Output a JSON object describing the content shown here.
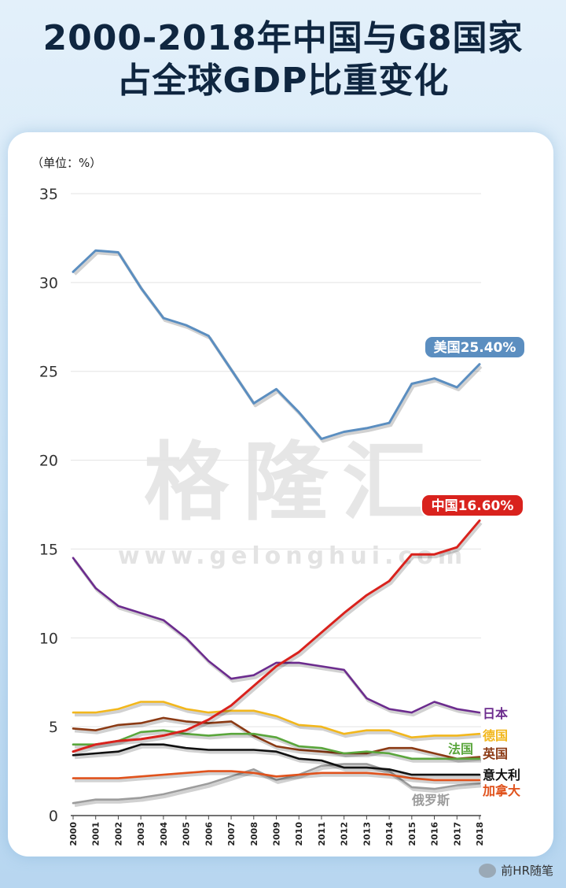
{
  "title_line1": "2000-2018年中国与G8国家",
  "title_line2": "占全球GDP比重变化",
  "unit": "（单位：%）",
  "watermark": "格隆汇",
  "watermark_url": "www.gelonghui.com",
  "credit": "前HR随笔",
  "callouts": {
    "us": "美国25.40%",
    "china": "中国16.60%"
  },
  "colors": {
    "us": "#5b8ec0",
    "china": "#d9221d",
    "japan": "#6c2c8e",
    "germany": "#f2b71c",
    "france": "#5aa63c",
    "uk": "#8b3a14",
    "italy": "#111111",
    "canada": "#e0521c",
    "russia": "#9c9c9c"
  },
  "chart_data": {
    "type": "line",
    "title": "2000-2018年中国与G8国家占全球GDP比重变化",
    "ylabel": "（单位：%）",
    "ylim": [
      0,
      35
    ],
    "yticks": [
      0,
      5,
      10,
      15,
      20,
      25,
      30,
      35
    ],
    "x": [
      "2000",
      "2001",
      "2002",
      "2003",
      "2004",
      "2005",
      "2006",
      "2007",
      "2008",
      "2009",
      "2010",
      "2011",
      "2012",
      "2013",
      "2014",
      "2015",
      "2016",
      "2017",
      "2018"
    ],
    "series": [
      {
        "name": "美国",
        "key": "us",
        "values": [
          30.6,
          31.8,
          31.7,
          29.7,
          28.0,
          27.6,
          27.0,
          25.1,
          23.2,
          24.0,
          22.7,
          21.2,
          21.6,
          21.8,
          22.1,
          24.3,
          24.6,
          24.1,
          25.4
        ]
      },
      {
        "name": "中国",
        "key": "china",
        "values": [
          3.6,
          4.0,
          4.2,
          4.3,
          4.5,
          4.8,
          5.4,
          6.2,
          7.3,
          8.4,
          9.2,
          10.3,
          11.4,
          12.4,
          13.2,
          14.7,
          14.7,
          15.1,
          16.6
        ]
      },
      {
        "name": "日本",
        "key": "japan",
        "values": [
          14.5,
          12.8,
          11.8,
          11.4,
          11.0,
          10.0,
          8.7,
          7.7,
          7.9,
          8.6,
          8.6,
          8.4,
          8.2,
          6.6,
          6.0,
          5.8,
          6.4,
          6.0,
          5.8
        ]
      },
      {
        "name": "德国",
        "key": "germany",
        "values": [
          5.8,
          5.8,
          6.0,
          6.4,
          6.4,
          6.0,
          5.8,
          5.9,
          5.9,
          5.6,
          5.1,
          5.0,
          4.6,
          4.8,
          4.8,
          4.4,
          4.5,
          4.5,
          4.6
        ]
      },
      {
        "name": "法国",
        "key": "france",
        "values": [
          4.0,
          4.0,
          4.2,
          4.7,
          4.8,
          4.6,
          4.5,
          4.6,
          4.6,
          4.4,
          3.9,
          3.8,
          3.5,
          3.6,
          3.5,
          3.2,
          3.2,
          3.2,
          3.2
        ]
      },
      {
        "name": "英国",
        "key": "uk",
        "values": [
          4.9,
          4.8,
          5.1,
          5.2,
          5.5,
          5.3,
          5.2,
          5.3,
          4.5,
          3.9,
          3.7,
          3.6,
          3.5,
          3.5,
          3.8,
          3.8,
          3.5,
          3.2,
          3.3
        ]
      },
      {
        "name": "意大利",
        "key": "italy",
        "values": [
          3.4,
          3.5,
          3.6,
          4.0,
          4.0,
          3.8,
          3.7,
          3.7,
          3.7,
          3.6,
          3.2,
          3.1,
          2.7,
          2.7,
          2.6,
          2.3,
          2.3,
          2.3,
          2.3
        ]
      },
      {
        "name": "加拿大",
        "key": "canada",
        "values": [
          2.1,
          2.1,
          2.1,
          2.2,
          2.3,
          2.4,
          2.5,
          2.5,
          2.4,
          2.2,
          2.3,
          2.4,
          2.4,
          2.4,
          2.3,
          2.1,
          2.0,
          2.0,
          2.0
        ]
      },
      {
        "name": "俄罗斯",
        "key": "russia",
        "values": [
          0.7,
          0.9,
          0.9,
          1.0,
          1.2,
          1.5,
          1.8,
          2.2,
          2.6,
          2.0,
          2.3,
          2.8,
          2.9,
          2.9,
          2.5,
          1.6,
          1.5,
          1.7,
          1.8
        ]
      }
    ]
  }
}
